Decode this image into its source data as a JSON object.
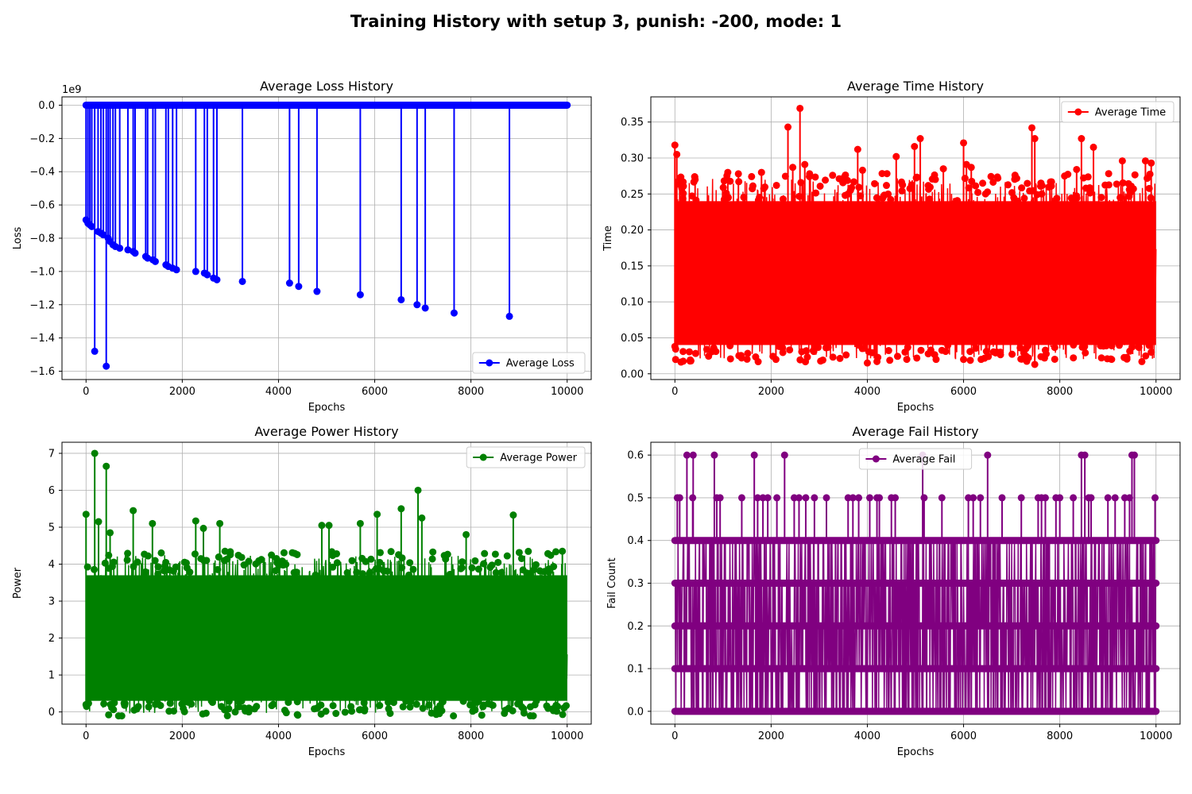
{
  "figure": {
    "title": "Training History with setup 3, punish: -200, mode: 1"
  },
  "chart_data": [
    {
      "type": "line",
      "title": "Average Loss History",
      "xlabel": "Epochs",
      "ylabel": "Loss",
      "y_offset_text": "1e9",
      "xlim": [
        -500,
        10500
      ],
      "ylim": [
        -1.65,
        0.05
      ],
      "xticks": [
        0,
        2000,
        4000,
        6000,
        8000,
        10000
      ],
      "yticks": [
        0.0,
        -0.2,
        -0.4,
        -0.6,
        -0.8,
        -1.0,
        -1.2,
        -1.4,
        -1.6
      ],
      "ytick_decimals": 1,
      "grid": true,
      "legend_location": "lower right",
      "color": "#0000ff",
      "series": [
        {
          "name": "Average Loss",
          "baseline": 0.0,
          "baseline_x_range": [
            0,
            10000
          ],
          "spikes": [
            {
              "x": 0,
              "y": -0.69
            },
            {
              "x": 40,
              "y": -0.71
            },
            {
              "x": 80,
              "y": -0.72
            },
            {
              "x": 120,
              "y": -0.73
            },
            {
              "x": 180,
              "y": -1.48
            },
            {
              "x": 250,
              "y": -0.76
            },
            {
              "x": 310,
              "y": -0.77
            },
            {
              "x": 360,
              "y": -0.78
            },
            {
              "x": 420,
              "y": -1.57
            },
            {
              "x": 460,
              "y": -0.8
            },
            {
              "x": 500,
              "y": -0.82
            },
            {
              "x": 560,
              "y": -0.84
            },
            {
              "x": 610,
              "y": -0.85
            },
            {
              "x": 700,
              "y": -0.86
            },
            {
              "x": 870,
              "y": -0.87
            },
            {
              "x": 980,
              "y": -0.88
            },
            {
              "x": 1020,
              "y": -0.89
            },
            {
              "x": 1240,
              "y": -0.91
            },
            {
              "x": 1280,
              "y": -0.92
            },
            {
              "x": 1390,
              "y": -0.93
            },
            {
              "x": 1440,
              "y": -0.94
            },
            {
              "x": 1660,
              "y": -0.96
            },
            {
              "x": 1710,
              "y": -0.97
            },
            {
              "x": 1800,
              "y": -0.98
            },
            {
              "x": 1880,
              "y": -0.99
            },
            {
              "x": 2280,
              "y": -1.0
            },
            {
              "x": 2460,
              "y": -1.01
            },
            {
              "x": 2520,
              "y": -1.02
            },
            {
              "x": 2650,
              "y": -1.04
            },
            {
              "x": 2720,
              "y": -1.05
            },
            {
              "x": 3250,
              "y": -1.06
            },
            {
              "x": 4230,
              "y": -1.07
            },
            {
              "x": 4420,
              "y": -1.09
            },
            {
              "x": 4800,
              "y": -1.12
            },
            {
              "x": 5700,
              "y": -1.14
            },
            {
              "x": 6550,
              "y": -1.17
            },
            {
              "x": 6880,
              "y": -1.2
            },
            {
              "x": 7050,
              "y": -1.22
            },
            {
              "x": 7650,
              "y": -1.25
            },
            {
              "x": 8800,
              "y": -1.27
            }
          ]
        }
      ]
    },
    {
      "type": "line",
      "title": "Average Time History",
      "xlabel": "Epochs",
      "ylabel": "Time",
      "xlim": [
        -500,
        10500
      ],
      "ylim": [
        -0.008,
        0.385
      ],
      "xticks": [
        0,
        2000,
        4000,
        6000,
        8000,
        10000
      ],
      "yticks": [
        0.0,
        0.05,
        0.1,
        0.15,
        0.2,
        0.25,
        0.3,
        0.35
      ],
      "ytick_decimals": 2,
      "grid": true,
      "legend_location": "upper right",
      "color": "#ff0000",
      "series": [
        {
          "name": "Average Time",
          "dense_band": {
            "x_range": [
              0,
              10000
            ],
            "y_range": [
              0.04,
              0.24
            ]
          },
          "peaks": [
            {
              "x": 0,
              "y": 0.318
            },
            {
              "x": 40,
              "y": 0.305
            },
            {
              "x": 100,
              "y": 0.272
            },
            {
              "x": 420,
              "y": 0.27
            },
            {
              "x": 1100,
              "y": 0.28
            },
            {
              "x": 1320,
              "y": 0.278
            },
            {
              "x": 1800,
              "y": 0.28
            },
            {
              "x": 2350,
              "y": 0.343
            },
            {
              "x": 2450,
              "y": 0.287
            },
            {
              "x": 2600,
              "y": 0.369
            },
            {
              "x": 2700,
              "y": 0.291
            },
            {
              "x": 2800,
              "y": 0.278
            },
            {
              "x": 3800,
              "y": 0.312
            },
            {
              "x": 3900,
              "y": 0.283
            },
            {
              "x": 4600,
              "y": 0.302
            },
            {
              "x": 4980,
              "y": 0.316
            },
            {
              "x": 5100,
              "y": 0.327
            },
            {
              "x": 5580,
              "y": 0.285
            },
            {
              "x": 6000,
              "y": 0.321
            },
            {
              "x": 6060,
              "y": 0.291
            },
            {
              "x": 6160,
              "y": 0.287
            },
            {
              "x": 7420,
              "y": 0.342
            },
            {
              "x": 7480,
              "y": 0.327
            },
            {
              "x": 8100,
              "y": 0.275
            },
            {
              "x": 8350,
              "y": 0.284
            },
            {
              "x": 8450,
              "y": 0.327
            },
            {
              "x": 8700,
              "y": 0.315
            },
            {
              "x": 9300,
              "y": 0.296
            },
            {
              "x": 9780,
              "y": 0.296
            },
            {
              "x": 9900,
              "y": 0.293
            }
          ],
          "troughs": [
            {
              "x": 0,
              "y": 0.038
            },
            {
              "x": 4000,
              "y": 0.015
            },
            {
              "x": 4200,
              "y": 0.017
            },
            {
              "x": 7480,
              "y": 0.013
            },
            {
              "x": 2100,
              "y": 0.02
            },
            {
              "x": 6000,
              "y": 0.02
            },
            {
              "x": 9900,
              "y": 0.03
            }
          ]
        }
      ]
    },
    {
      "type": "line",
      "title": "Average Power History",
      "xlabel": "Epochs",
      "ylabel": "Power",
      "xlim": [
        -500,
        10500
      ],
      "ylim": [
        -0.33,
        7.3
      ],
      "xticks": [
        0,
        2000,
        4000,
        6000,
        8000,
        10000
      ],
      "yticks": [
        0,
        1,
        2,
        3,
        4,
        5,
        6,
        7
      ],
      "ytick_decimals": 0,
      "grid": true,
      "legend_location": "upper right",
      "color": "#008000",
      "series": [
        {
          "name": "Average Power",
          "dense_band": {
            "x_range": [
              0,
              10000
            ],
            "y_range": [
              0.3,
              3.7
            ]
          },
          "peaks": [
            {
              "x": 0,
              "y": 5.35
            },
            {
              "x": 180,
              "y": 7.0
            },
            {
              "x": 260,
              "y": 5.15
            },
            {
              "x": 420,
              "y": 6.65
            },
            {
              "x": 500,
              "y": 4.85
            },
            {
              "x": 980,
              "y": 5.45
            },
            {
              "x": 1380,
              "y": 5.1
            },
            {
              "x": 2280,
              "y": 5.17
            },
            {
              "x": 2440,
              "y": 4.97
            },
            {
              "x": 2780,
              "y": 5.1
            },
            {
              "x": 4900,
              "y": 5.05
            },
            {
              "x": 5050,
              "y": 5.05
            },
            {
              "x": 5700,
              "y": 5.1
            },
            {
              "x": 6050,
              "y": 5.35
            },
            {
              "x": 6550,
              "y": 5.5
            },
            {
              "x": 6900,
              "y": 6.0
            },
            {
              "x": 6980,
              "y": 5.25
            },
            {
              "x": 7900,
              "y": 4.8
            },
            {
              "x": 8880,
              "y": 5.33
            },
            {
              "x": 9900,
              "y": 4.35
            }
          ],
          "troughs": [
            {
              "x": 0,
              "y": 0.2
            },
            {
              "x": 1000,
              "y": 0.05
            },
            {
              "x": 3100,
              "y": 0.0
            },
            {
              "x": 4800,
              "y": 0.1
            },
            {
              "x": 7000,
              "y": 0.1
            },
            {
              "x": 9800,
              "y": 0.15
            }
          ]
        }
      ]
    },
    {
      "type": "line",
      "title": "Average Fail History",
      "xlabel": "Epochs",
      "ylabel": "Fail Count",
      "xlim": [
        -500,
        10500
      ],
      "ylim": [
        -0.03,
        0.63
      ],
      "xticks": [
        0,
        2000,
        4000,
        6000,
        8000,
        10000
      ],
      "yticks": [
        0.0,
        0.1,
        0.2,
        0.3,
        0.4,
        0.5,
        0.6
      ],
      "ytick_decimals": 1,
      "grid": true,
      "legend_location": "upper center",
      "color": "#800080",
      "series": [
        {
          "name": "Average Fail",
          "levels": [
            0.0,
            0.1,
            0.2,
            0.3,
            0.4,
            0.5,
            0.6
          ],
          "dense_band": {
            "x_range": [
              0,
              10000
            ],
            "y_range": [
              0.0,
              0.4
            ]
          },
          "peaks_0_6": [
            250,
            380,
            820,
            1650,
            2280,
            5150,
            6500,
            8450,
            8520,
            9500,
            9550
          ],
          "peaks_0_5": [
            50,
            100,
            370,
            870,
            940,
            1390,
            1720,
            1830,
            1930,
            2120,
            2480,
            2580,
            2720,
            2900,
            3150,
            3600,
            3700,
            3820,
            4050,
            4200,
            4250,
            4500,
            4580,
            5180,
            5550,
            6100,
            6200,
            6350,
            6800,
            7200,
            7550,
            7620,
            7700,
            7920,
            8000,
            8280,
            8600,
            8650,
            9000,
            9150,
            9350,
            9450,
            9980
          ]
        }
      ]
    }
  ]
}
